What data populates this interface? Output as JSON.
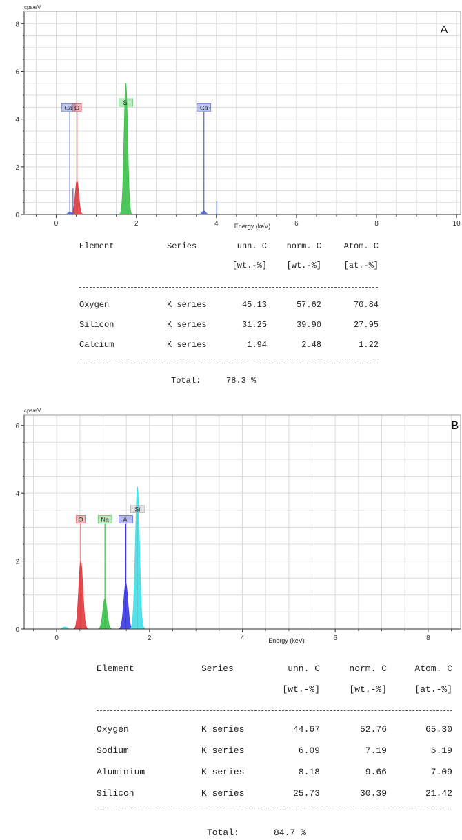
{
  "charts": [
    {
      "panel_label": "A",
      "y_unit": "cps/eV",
      "xlabel": "Energy (keV)",
      "x_ticks": [
        "0",
        "2",
        "4",
        "6",
        "8",
        "10"
      ],
      "y_ticks": [
        "0",
        "2",
        "4",
        "6",
        "8"
      ],
      "peak_labels": [
        {
          "text": "Ca",
          "energy": 0.34,
          "color": "#4a63d8"
        },
        {
          "text": "O",
          "energy": 0.52,
          "color": "#e0393e"
        },
        {
          "text": "Si",
          "energy": 1.74,
          "color": "#3cc04a"
        },
        {
          "text": "Ca",
          "energy": 3.69,
          "color": "#4a63d8"
        }
      ],
      "table": {
        "headers": [
          "Element",
          "Series",
          "unn. C",
          "norm. C",
          "Atom. C"
        ],
        "units": [
          "",
          "",
          "[wt.-%]",
          "[wt.-%]",
          "[at.-%]"
        ],
        "rows": [
          [
            "Oxygen",
            "K series",
            "45.13",
            "57.62",
            "70.84"
          ],
          [
            "Silicon",
            "K series",
            "31.25",
            "39.90",
            "27.95"
          ],
          [
            "Calcium",
            "K series",
            "1.94",
            "2.48",
            "1.22"
          ]
        ],
        "total_label": "Total:",
        "total_value": "78.3 %"
      }
    },
    {
      "panel_label": "B",
      "y_unit": "cps/eV",
      "xlabel": "Energy (keV)",
      "x_ticks": [
        "0",
        "2",
        "4",
        "6",
        "8"
      ],
      "y_ticks": [
        "0",
        "2",
        "4",
        "6"
      ],
      "peak_labels": [
        {
          "text": "O",
          "energy": 0.52,
          "color": "#e0393e"
        },
        {
          "text": "Na",
          "energy": 1.04,
          "color": "#3cc04a"
        },
        {
          "text": "Al",
          "energy": 1.49,
          "color": "#3a3ae0"
        },
        {
          "text": "Si",
          "energy": 1.74,
          "color": "#aaaaaa"
        }
      ],
      "table": {
        "headers": [
          "Element",
          "Series",
          "unn. C",
          "norm. C",
          "Atom. C"
        ],
        "units": [
          "",
          "",
          "[wt.-%]",
          "[wt.-%]",
          "[at.-%]"
        ],
        "rows": [
          [
            "Oxygen",
            "K series",
            "44.67",
            "52.76",
            "65.30"
          ],
          [
            "Sodium",
            "K series",
            "6.09",
            "7.19",
            "6.19"
          ],
          [
            "Aluminium",
            "K series",
            "8.18",
            "9.66",
            "7.09"
          ],
          [
            "Silicon",
            "K series",
            "25.73",
            "30.39",
            "21.42"
          ]
        ],
        "total_label": "Total:",
        "total_value": "84.7 %"
      }
    }
  ],
  "chart_data": [
    {
      "type": "line",
      "xlabel": "Energy (keV)",
      "ylabel": "cps/eV",
      "xlim": [
        -0.8,
        10.1
      ],
      "ylim": [
        0,
        8.5
      ],
      "grid": true,
      "series": [
        {
          "color": "#3cc04a",
          "values": [
            {
              "x": 1.74,
              "y": 5.5
            }
          ]
        },
        {
          "color": "#e0393e",
          "values": [
            {
              "x": 0.52,
              "y": 1.4
            }
          ]
        },
        {
          "color": "#4a63d8",
          "values": [
            {
              "x": 3.69,
              "y": 0.15
            },
            {
              "x": 0.34,
              "y": 0.1
            }
          ]
        }
      ],
      "marker_lines": [
        {
          "x": 0.34,
          "y": 4.3
        },
        {
          "x": 0.42,
          "y": 1.1
        },
        {
          "x": 0.52,
          "y": 4.3
        },
        {
          "x": 3.69,
          "y": 4.3
        },
        {
          "x": 4.01,
          "y": 0.55
        }
      ]
    },
    {
      "type": "line",
      "xlabel": "Energy (keV)",
      "ylabel": "cps/eV",
      "xlim": [
        -0.7,
        8.7
      ],
      "ylim": [
        0,
        6.3
      ],
      "grid": true,
      "series": [
        {
          "color": "#e0393e",
          "values": [
            {
              "x": 0.52,
              "y": 2.0
            }
          ]
        },
        {
          "color": "#3cc04a",
          "values": [
            {
              "x": 1.04,
              "y": 0.9
            }
          ]
        },
        {
          "color": "#3a3ae0",
          "values": [
            {
              "x": 1.49,
              "y": 1.35
            }
          ]
        },
        {
          "color": "#3fe0e8",
          "values": [
            {
              "x": 1.74,
              "y": 4.2
            },
            {
              "x": 0.18,
              "y": 0.06
            }
          ]
        }
      ],
      "marker_lines": [
        {
          "x": 0.52,
          "y": 3.1
        },
        {
          "x": 1.04,
          "y": 3.1
        },
        {
          "x": 1.49,
          "y": 3.1
        },
        {
          "x": 1.74,
          "y": 3.4
        }
      ]
    }
  ]
}
